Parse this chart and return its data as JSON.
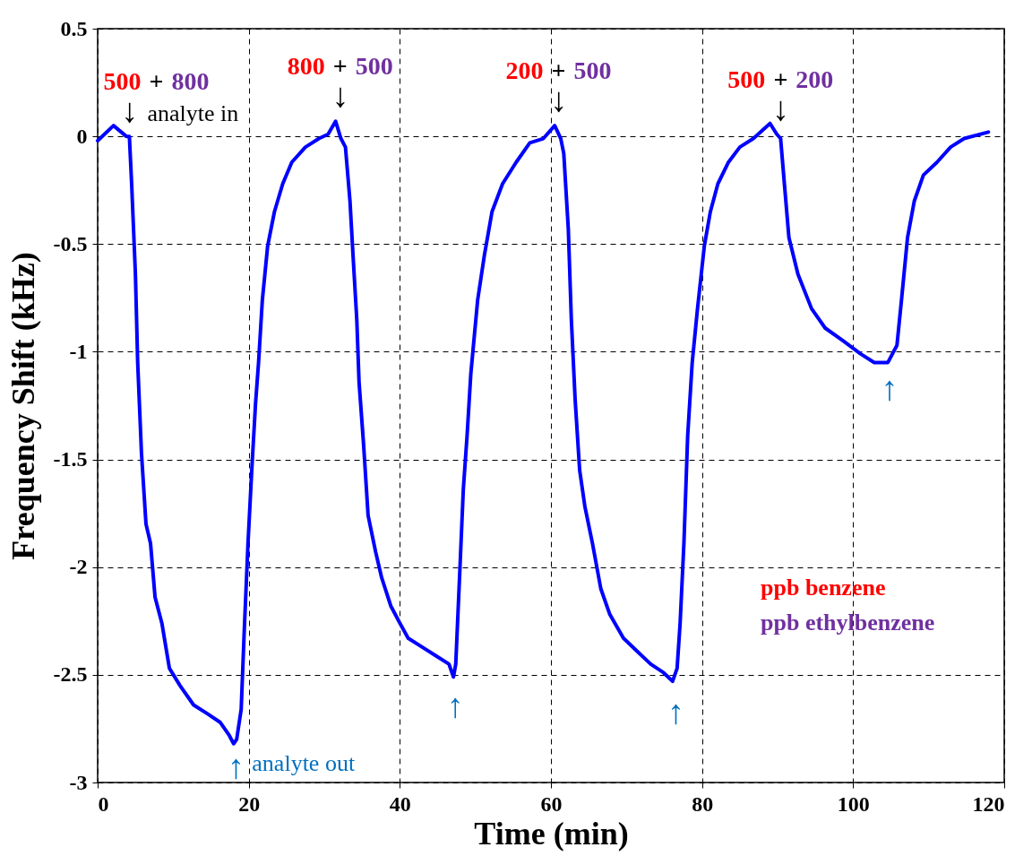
{
  "chart_data": {
    "type": "line",
    "xlabel": "Time (min)",
    "ylabel": "Frequency Shift (kHz)",
    "xlim": [
      0,
      120
    ],
    "xticks": [
      0,
      20,
      40,
      60,
      80,
      100,
      120
    ],
    "ylim": [
      -3,
      0.5
    ],
    "yticks": [
      -3,
      -2.5,
      -2,
      -1.5,
      -1,
      -0.5,
      0,
      0.5
    ],
    "grid": true,
    "line_style": "solid",
    "series": [
      {
        "color": "#0000ff",
        "x": [
          0,
          2.1,
          3.8,
          4.2,
          4.5,
          5.0,
          5.3,
          5.8,
          6.4,
          7.0,
          7.6,
          8.5,
          9.5,
          10.9,
          12.7,
          14.5,
          16.2,
          17.4,
          18.0,
          18.4,
          19.0,
          19.4,
          19.9,
          20.4,
          20.9,
          21.3,
          21.8,
          22.5,
          23.4,
          24.5,
          25.7,
          27.5,
          29.3,
          30.5,
          31.5,
          32.2,
          32.8,
          33.4,
          33.8,
          34.3,
          34.6,
          35.2,
          35.8,
          36.8,
          37.6,
          38.8,
          40.0,
          41.1,
          42.9,
          44.7,
          46.5,
          47.1,
          47.4,
          47.9,
          48.4,
          48.9,
          49.4,
          50.3,
          51.2,
          52.2,
          53.6,
          55.4,
          57.2,
          59.0,
          60.5,
          61.3,
          61.7,
          62.3,
          62.7,
          63.2,
          63.8,
          64.5,
          65.5,
          66.6,
          67.8,
          69.6,
          71.4,
          73.2,
          74.9,
          76.1,
          76.7,
          77.1,
          77.6,
          78.1,
          78.7,
          79.4,
          80.3,
          81.1,
          82.1,
          83.5,
          85.0,
          86.8,
          89.0,
          89.9,
          90.4,
          90.9,
          91.5,
          92.7,
          94.5,
          96.3,
          98.7,
          101.0,
          102.8,
          104.6,
          105.8,
          106.4,
          107.2,
          108.1,
          109.3,
          111.1,
          112.9,
          114.7,
          117.9
        ],
        "values": [
          -0.02,
          0.05,
          0,
          0,
          -0.22,
          -0.64,
          -1.05,
          -1.47,
          -1.8,
          -1.89,
          -2.14,
          -2.26,
          -2.47,
          -2.55,
          -2.64,
          -2.68,
          -2.72,
          -2.78,
          -2.82,
          -2.8,
          -2.66,
          -2.3,
          -1.89,
          -1.55,
          -1.24,
          -1.05,
          -0.76,
          -0.51,
          -0.35,
          -0.22,
          -0.12,
          -0.05,
          -0.01,
          0.01,
          0.07,
          -0.01,
          -0.05,
          -0.3,
          -0.55,
          -0.85,
          -1.14,
          -1.43,
          -1.76,
          -1.93,
          -2.05,
          -2.18,
          -2.26,
          -2.33,
          -2.37,
          -2.41,
          -2.45,
          -2.51,
          -2.45,
          -2.05,
          -1.64,
          -1.39,
          -1.1,
          -0.76,
          -0.55,
          -0.35,
          -0.22,
          -0.12,
          -0.03,
          -0.01,
          0.05,
          -0.01,
          -0.08,
          -0.43,
          -0.85,
          -1.22,
          -1.55,
          -1.72,
          -1.89,
          -2.1,
          -2.22,
          -2.33,
          -2.39,
          -2.45,
          -2.49,
          -2.53,
          -2.47,
          -2.26,
          -1.89,
          -1.39,
          -1.05,
          -0.8,
          -0.51,
          -0.35,
          -0.22,
          -0.12,
          -0.05,
          -0.01,
          0.06,
          0.01,
          -0.01,
          -0.22,
          -0.47,
          -0.64,
          -0.8,
          -0.89,
          -0.95,
          -1.01,
          -1.05,
          -1.05,
          -0.97,
          -0.76,
          -0.47,
          -0.3,
          -0.18,
          -0.12,
          -0.05,
          -0.01,
          0.02
        ]
      }
    ],
    "annotations": [
      {
        "text": "500 + 800",
        "x": 4.2,
        "y": 0
      },
      {
        "text": "↓",
        "x": 4.2,
        "y": 0
      },
      {
        "text": "analyte in",
        "x": 4.2,
        "y": 0
      },
      {
        "text": "800 + 500",
        "x": 32.1,
        "y": 0.07
      },
      {
        "text": "↓",
        "x": 32.1,
        "y": 0.07
      },
      {
        "text": "200 + 500",
        "x": 61,
        "y": 0.05
      },
      {
        "text": "↓",
        "x": 61,
        "y": 0.05
      },
      {
        "text": "500 + 200",
        "x": 90.4,
        "y": 0.01
      },
      {
        "text": "↓",
        "x": 90.4,
        "y": 0.01
      },
      {
        "text": "↑",
        "x": 18.3,
        "y": -2.82
      },
      {
        "text": "analyte out",
        "x": 18.3,
        "y": -2.82
      },
      {
        "text": "↑",
        "x": 47.3,
        "y": -2.52
      },
      {
        "text": "↑",
        "x": 76.5,
        "y": -2.55
      },
      {
        "text": "↑",
        "x": 104.8,
        "y": -1.05
      },
      "ppb benzene",
      "ppb ethylbenzene"
    ]
  }
}
